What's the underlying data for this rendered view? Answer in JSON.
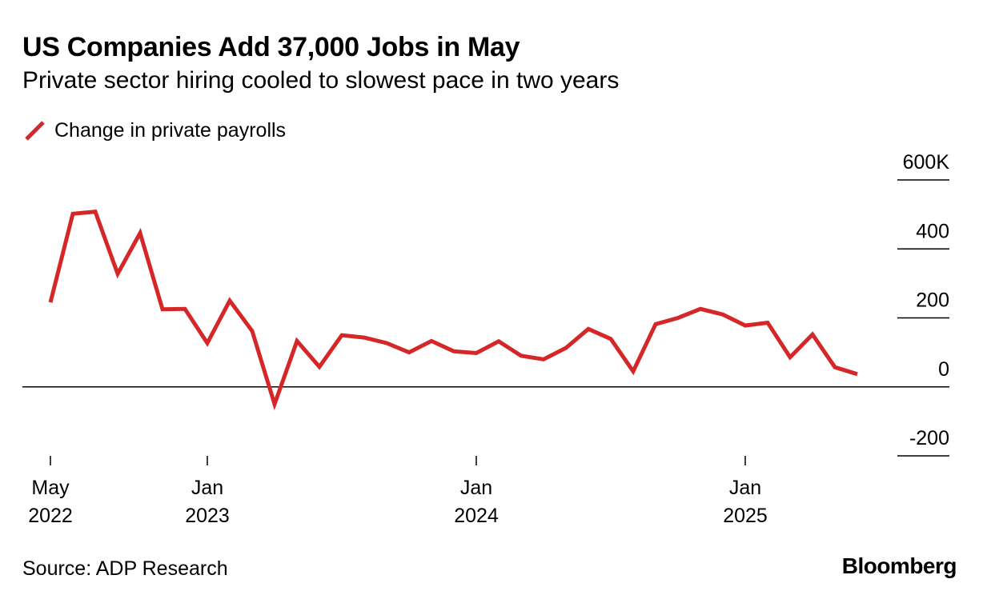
{
  "header": {
    "title": "US Companies Add 37,000 Jobs in May",
    "subtitle": "Private sector hiring cooled to slowest pace in two years"
  },
  "legend": {
    "label": "Change in private payrolls",
    "color": "#d62728"
  },
  "footer": {
    "source": "Source: ADP Research",
    "brand": "Bloomberg"
  },
  "chart_data": {
    "type": "line",
    "title": "US Companies Add 37,000 Jobs in May",
    "subtitle": "Private sector hiring cooled to slowest pace in two years",
    "xlabel": "",
    "ylabel": "",
    "ylim": [
      -200,
      600
    ],
    "y_ticks": [
      {
        "value": 600,
        "label": "600K"
      },
      {
        "value": 400,
        "label": "400"
      },
      {
        "value": 200,
        "label": "200"
      },
      {
        "value": 0,
        "label": "0"
      },
      {
        "value": -200,
        "label": "-200"
      }
    ],
    "x_ticks": [
      {
        "index": 0,
        "line1": "May",
        "line2": "2022"
      },
      {
        "index": 7,
        "line1": "Jan",
        "line2": "2023"
      },
      {
        "index": 19,
        "line1": "Jan",
        "line2": "2024"
      },
      {
        "index": 31,
        "line1": "Jan",
        "line2": "2025"
      }
    ],
    "legend_position": "top-left",
    "grid": false,
    "series": [
      {
        "name": "Change in private payrolls",
        "color": "#d62728",
        "x": [
          "2022-05",
          "2022-06",
          "2022-07",
          "2022-08",
          "2022-09",
          "2022-10",
          "2022-11",
          "2022-12",
          "2023-01",
          "2023-02",
          "2023-03",
          "2023-04",
          "2023-05",
          "2023-06",
          "2023-07",
          "2023-08",
          "2023-09",
          "2023-10",
          "2023-11",
          "2023-12",
          "2024-01",
          "2024-02",
          "2024-03",
          "2024-04",
          "2024-05",
          "2024-06",
          "2024-07",
          "2024-08",
          "2024-09",
          "2024-10",
          "2024-11",
          "2024-12",
          "2025-01",
          "2025-02",
          "2025-03",
          "2025-04",
          "2025-05"
        ],
        "values": [
          245,
          502,
          508,
          328,
          446,
          225,
          226,
          127,
          250,
          162,
          -50,
          133,
          58,
          150,
          143,
          127,
          100,
          133,
          103,
          98,
          132,
          90,
          80,
          113,
          168,
          139,
          45,
          182,
          200,
          226,
          210,
          178,
          186,
          86,
          152,
          57,
          37
        ]
      }
    ]
  }
}
